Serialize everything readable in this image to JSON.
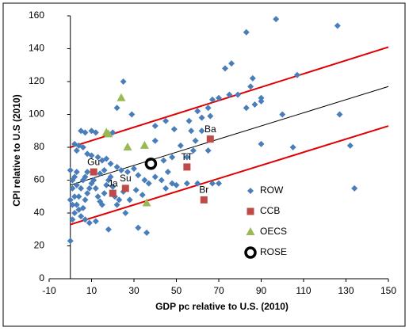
{
  "chart_data": {
    "type": "scatter",
    "xlabel": "GDP pc relative to U.S. (2010)",
    "ylabel": "CPI relative to U.S (2010)",
    "xlim": [
      -10,
      150
    ],
    "ylim": [
      0,
      160
    ],
    "xticks": [
      -10,
      10,
      30,
      50,
      70,
      90,
      110,
      130,
      150
    ],
    "yticks": [
      0,
      20,
      40,
      60,
      80,
      100,
      120,
      140,
      160
    ],
    "grid": false,
    "series": [
      {
        "name": "ROW",
        "color": "#4a7ebb",
        "marker": "diamond",
        "x": [
          97,
          126,
          83,
          76,
          73,
          86,
          85,
          90,
          90,
          107,
          79,
          87,
          83,
          100,
          127,
          105,
          90,
          132,
          134,
          25,
          22,
          29,
          45,
          49,
          57,
          62,
          66,
          56,
          60,
          65,
          67,
          70,
          75,
          62,
          40,
          48,
          58,
          55,
          65,
          52,
          59,
          40,
          20,
          12,
          10,
          5,
          7,
          2,
          4,
          6,
          3,
          8,
          10,
          13,
          15,
          17,
          19,
          22,
          24,
          27,
          30,
          32,
          35,
          37,
          40,
          43,
          45,
          48,
          50,
          55,
          60,
          67,
          70,
          34,
          31,
          28,
          22,
          18,
          32,
          36,
          0,
          1,
          2,
          3,
          4,
          5,
          6,
          7,
          8,
          1,
          2,
          3,
          0,
          1,
          2,
          4,
          5,
          6,
          7,
          8,
          9,
          10,
          11,
          12,
          13,
          14,
          15,
          16,
          17,
          18,
          19,
          20,
          21,
          23,
          25,
          26,
          12,
          9,
          7,
          3,
          0,
          1,
          14,
          16,
          44,
          46
        ],
        "values": [
          158,
          154,
          150,
          131,
          128,
          122,
          117,
          110,
          108,
          124,
          112,
          106,
          104,
          100,
          100,
          80,
          82,
          81,
          55,
          120,
          104,
          100,
          96,
          91,
          90,
          98,
          99,
          96,
          102,
          104,
          109,
          110,
          112,
          90,
          93,
          74,
          78,
          74,
          78,
          81,
          84,
          84,
          89,
          89,
          90,
          90,
          89,
          82,
          81,
          80,
          78,
          76,
          75,
          74,
          72,
          73,
          70,
          68,
          66,
          65,
          67,
          63,
          60,
          58,
          62,
          60,
          55,
          58,
          57,
          58,
          58,
          58,
          58,
          51,
          54,
          48,
          45,
          30,
          31,
          28,
          23,
          36,
          40,
          45,
          50,
          55,
          60,
          62,
          65,
          60,
          62,
          65,
          66,
          55,
          50,
          42,
          38,
          43,
          48,
          52,
          55,
          58,
          60,
          55,
          50,
          47,
          45,
          52,
          57,
          60,
          62,
          56,
          50,
          48,
          53,
          40,
          35,
          34,
          36,
          57,
          48,
          45,
          64,
          66,
          72,
          65
        ]
      },
      {
        "name": "CCB",
        "color": "#be4b48",
        "marker": "square",
        "x": [
          11,
          20,
          26,
          55,
          66,
          63
        ],
        "values": [
          65,
          52,
          55,
          68,
          85,
          48
        ],
        "point_labels": [
          "Gu",
          "Ja",
          "Su",
          "TT",
          "Ba",
          "Br"
        ]
      },
      {
        "name": "OECS",
        "color": "#98b954",
        "marker": "triangle",
        "x": [
          17,
          18,
          24,
          27,
          35,
          36
        ],
        "values": [
          89,
          88,
          110,
          80,
          81,
          46
        ]
      },
      {
        "name": "ROSE",
        "color": "#000000",
        "marker": "circle",
        "x": [
          38
        ],
        "values": [
          70
        ]
      }
    ],
    "lines": [
      {
        "color": "#e00000",
        "x": [
          0,
          150
        ],
        "values": [
          80,
          141
        ]
      },
      {
        "color": "#000000",
        "x": [
          0,
          150
        ],
        "values": [
          57,
          117
        ]
      },
      {
        "color": "#e00000",
        "x": [
          0,
          150
        ],
        "values": [
          33,
          93
        ]
      }
    ]
  }
}
